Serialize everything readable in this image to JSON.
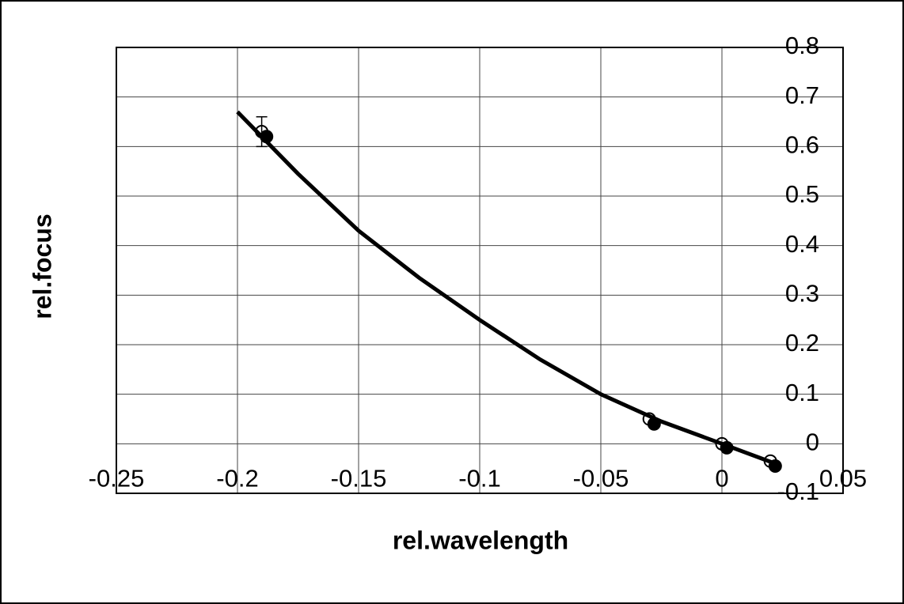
{
  "chart_data": {
    "type": "scatter",
    "xlabel": "rel.wavelength",
    "ylabel": "rel.focus",
    "xlim": [
      -0.25,
      0.05
    ],
    "ylim": [
      -0.1,
      0.8
    ],
    "xticks": [
      -0.25,
      -0.2,
      -0.15,
      -0.1,
      -0.05,
      0,
      0.05
    ],
    "yticks": [
      -0.1,
      0,
      0.1,
      0.2,
      0.3,
      0.4,
      0.5,
      0.6,
      0.7,
      0.8
    ],
    "grid": true,
    "series": [
      {
        "color": "#000000",
        "marker": "open",
        "x": [
          -0.19,
          -0.03,
          0,
          0.02
        ],
        "values": [
          0.63,
          0.05,
          0.0,
          -0.035
        ],
        "error": [
          0.03,
          null,
          null,
          null
        ]
      },
      {
        "color": "#000000",
        "marker": "filled",
        "x": [
          -0.188,
          -0.028,
          0.002,
          0.022
        ],
        "values": [
          0.62,
          0.04,
          -0.008,
          -0.045
        ]
      },
      {
        "color": "#000000",
        "marker": "line",
        "x": [
          -0.2,
          -0.175,
          -0.15,
          -0.125,
          -0.1,
          -0.075,
          -0.05,
          -0.025,
          0,
          0.022
        ],
        "values": [
          0.67,
          0.545,
          0.43,
          0.335,
          0.25,
          0.17,
          0.1,
          0.045,
          0.0,
          -0.04
        ]
      }
    ]
  }
}
